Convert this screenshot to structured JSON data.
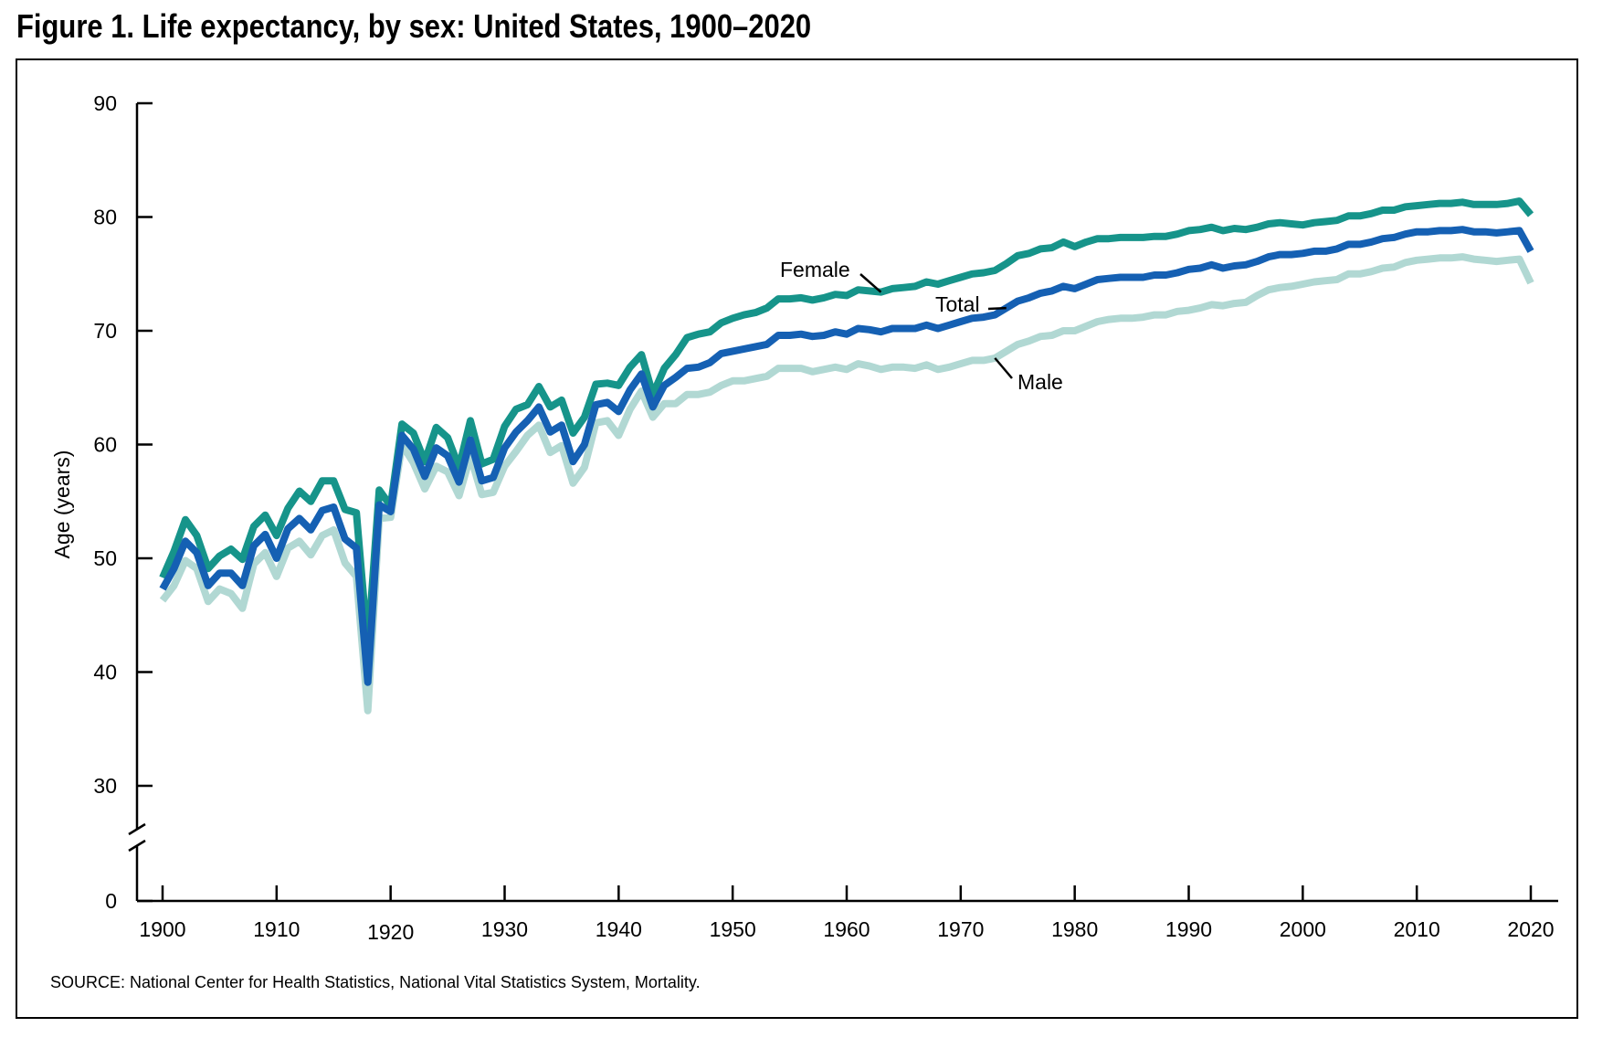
{
  "title": "Figure 1. Life expectancy, by sex: United States, 1900–2020",
  "source": "SOURCE: National Center for Health Statistics, National Vital Statistics System, Mortality.",
  "chart_data": {
    "type": "line",
    "title": "Figure 1. Life expectancy, by sex: United States, 1900–2020",
    "xlabel": "",
    "ylabel": "Age (years)",
    "xlim": [
      1900,
      2020
    ],
    "ylim": [
      0,
      90
    ],
    "axis_break": [
      0,
      30
    ],
    "xticks": [
      1900,
      1910,
      1920,
      1930,
      1940,
      1950,
      1960,
      1970,
      1980,
      1990,
      2000,
      2010,
      2020
    ],
    "yticks": [
      0,
      30,
      40,
      50,
      60,
      70,
      80,
      90
    ],
    "grid": false,
    "legend": "inline labels",
    "x": [
      1900,
      1901,
      1902,
      1903,
      1904,
      1905,
      1906,
      1907,
      1908,
      1909,
      1910,
      1911,
      1912,
      1913,
      1914,
      1915,
      1916,
      1917,
      1918,
      1919,
      1920,
      1921,
      1922,
      1923,
      1924,
      1925,
      1926,
      1927,
      1928,
      1929,
      1930,
      1931,
      1932,
      1933,
      1934,
      1935,
      1936,
      1937,
      1938,
      1939,
      1940,
      1941,
      1942,
      1943,
      1944,
      1945,
      1946,
      1947,
      1948,
      1949,
      1950,
      1951,
      1952,
      1953,
      1954,
      1955,
      1956,
      1957,
      1958,
      1959,
      1960,
      1961,
      1962,
      1963,
      1964,
      1965,
      1966,
      1967,
      1968,
      1969,
      1970,
      1971,
      1972,
      1973,
      1974,
      1975,
      1976,
      1977,
      1978,
      1979,
      1980,
      1981,
      1982,
      1983,
      1984,
      1985,
      1986,
      1987,
      1988,
      1989,
      1990,
      1991,
      1992,
      1993,
      1994,
      1995,
      1996,
      1997,
      1998,
      1999,
      2000,
      2001,
      2002,
      2003,
      2004,
      2005,
      2006,
      2007,
      2008,
      2009,
      2010,
      2011,
      2012,
      2013,
      2014,
      2015,
      2016,
      2017,
      2018,
      2019,
      2020
    ],
    "series": [
      {
        "name": "Female",
        "color": "#16948a",
        "values": [
          48.3,
          50.6,
          53.4,
          52.0,
          49.1,
          50.2,
          50.8,
          49.9,
          52.8,
          53.8,
          52.0,
          54.4,
          55.9,
          55.0,
          56.8,
          56.8,
          54.3,
          54.0,
          42.2,
          56.0,
          54.6,
          61.8,
          61.0,
          58.5,
          61.5,
          60.6,
          58.0,
          62.1,
          58.3,
          58.7,
          61.6,
          63.1,
          63.5,
          65.1,
          63.3,
          63.9,
          61.0,
          62.4,
          65.3,
          65.4,
          65.2,
          66.8,
          67.9,
          64.4,
          66.7,
          67.9,
          69.4,
          69.7,
          69.9,
          70.7,
          71.1,
          71.4,
          71.6,
          72.0,
          72.8,
          72.8,
          72.9,
          72.7,
          72.9,
          73.2,
          73.1,
          73.6,
          73.5,
          73.4,
          73.7,
          73.8,
          73.9,
          74.3,
          74.1,
          74.4,
          74.7,
          75.0,
          75.1,
          75.3,
          75.9,
          76.6,
          76.8,
          77.2,
          77.3,
          77.8,
          77.4,
          77.8,
          78.1,
          78.1,
          78.2,
          78.2,
          78.2,
          78.3,
          78.3,
          78.5,
          78.8,
          78.9,
          79.1,
          78.8,
          79.0,
          78.9,
          79.1,
          79.4,
          79.5,
          79.4,
          79.3,
          79.5,
          79.6,
          79.7,
          80.1,
          80.1,
          80.3,
          80.6,
          80.6,
          80.9,
          81.0,
          81.1,
          81.2,
          81.2,
          81.3,
          81.1,
          81.1,
          81.1,
          81.2,
          81.4,
          80.2
        ]
      },
      {
        "name": "Total",
        "color": "#1560b3",
        "values": [
          47.3,
          49.1,
          51.5,
          50.5,
          47.6,
          48.7,
          48.7,
          47.6,
          51.1,
          52.1,
          50.0,
          52.6,
          53.5,
          52.5,
          54.2,
          54.5,
          51.7,
          50.9,
          39.1,
          54.7,
          54.1,
          60.8,
          59.6,
          57.2,
          59.7,
          59.0,
          56.7,
          60.4,
          56.8,
          57.1,
          59.7,
          61.1,
          62.1,
          63.3,
          61.1,
          61.7,
          58.5,
          60.0,
          63.5,
          63.7,
          62.9,
          64.8,
          66.2,
          63.3,
          65.2,
          65.9,
          66.7,
          66.8,
          67.2,
          68.0,
          68.2,
          68.4,
          68.6,
          68.8,
          69.6,
          69.6,
          69.7,
          69.5,
          69.6,
          69.9,
          69.7,
          70.2,
          70.1,
          69.9,
          70.2,
          70.2,
          70.2,
          70.5,
          70.2,
          70.5,
          70.8,
          71.1,
          71.2,
          71.4,
          72.0,
          72.6,
          72.9,
          73.3,
          73.5,
          73.9,
          73.7,
          74.1,
          74.5,
          74.6,
          74.7,
          74.7,
          74.7,
          74.9,
          74.9,
          75.1,
          75.4,
          75.5,
          75.8,
          75.5,
          75.7,
          75.8,
          76.1,
          76.5,
          76.7,
          76.7,
          76.8,
          77.0,
          77.0,
          77.2,
          77.6,
          77.6,
          77.8,
          78.1,
          78.2,
          78.5,
          78.7,
          78.7,
          78.8,
          78.8,
          78.9,
          78.7,
          78.7,
          78.6,
          78.7,
          78.8,
          77.0
        ]
      },
      {
        "name": "Male",
        "color": "#b1d8d3",
        "values": [
          46.3,
          47.6,
          49.8,
          49.1,
          46.2,
          47.3,
          46.9,
          45.6,
          49.5,
          50.5,
          48.4,
          50.9,
          51.5,
          50.3,
          52.0,
          52.5,
          49.6,
          48.4,
          36.6,
          53.5,
          53.6,
          60.0,
          58.4,
          56.1,
          58.1,
          57.6,
          55.5,
          59.0,
          55.6,
          55.8,
          58.1,
          59.4,
          60.8,
          61.7,
          59.3,
          59.9,
          56.6,
          58.0,
          61.9,
          62.1,
          60.8,
          63.1,
          64.7,
          62.4,
          63.6,
          63.6,
          64.4,
          64.4,
          64.6,
          65.2,
          65.6,
          65.6,
          65.8,
          66.0,
          66.7,
          66.7,
          66.7,
          66.4,
          66.6,
          66.8,
          66.6,
          67.1,
          66.9,
          66.6,
          66.8,
          66.8,
          66.7,
          67.0,
          66.6,
          66.8,
          67.1,
          67.4,
          67.4,
          67.6,
          68.2,
          68.8,
          69.1,
          69.5,
          69.6,
          70.0,
          70.0,
          70.4,
          70.8,
          71.0,
          71.1,
          71.1,
          71.2,
          71.4,
          71.4,
          71.7,
          71.8,
          72.0,
          72.3,
          72.2,
          72.4,
          72.5,
          73.1,
          73.6,
          73.8,
          73.9,
          74.1,
          74.3,
          74.4,
          74.5,
          75.0,
          75.0,
          75.2,
          75.5,
          75.6,
          76.0,
          76.2,
          76.3,
          76.4,
          76.4,
          76.5,
          76.3,
          76.2,
          76.1,
          76.2,
          76.3,
          74.2
        ]
      }
    ],
    "annotations": [
      {
        "text": "Female",
        "series": "Female",
        "year": 1963
      },
      {
        "text": "Total",
        "series": "Total",
        "year": 1974
      },
      {
        "text": "Male",
        "series": "Male",
        "year": 1973
      }
    ]
  }
}
